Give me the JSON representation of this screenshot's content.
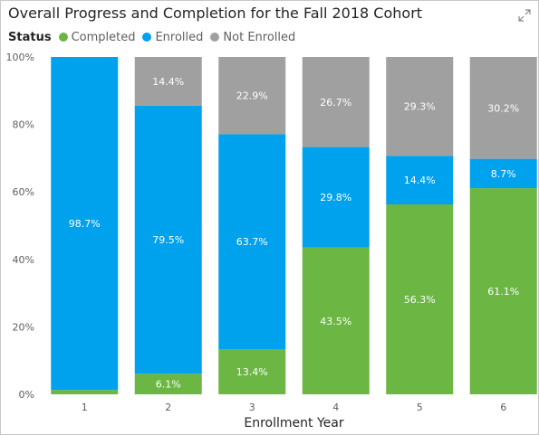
{
  "chart_data": {
    "type": "bar",
    "stacked": true,
    "title": "Overall Progress and Completion for the Fall 2018 Cohort",
    "legend_title": "Status",
    "legend_position": "top-left",
    "xlabel": "Enrollment Year",
    "ylabel": "",
    "categories": [
      "1",
      "2",
      "3",
      "4",
      "5",
      "6"
    ],
    "ylim": [
      0,
      100
    ],
    "y_ticks": [
      "0%",
      "20%",
      "40%",
      "60%",
      "80%",
      "100%"
    ],
    "y_tick_values": [
      0,
      20,
      40,
      60,
      80,
      100
    ],
    "grid": false,
    "series": [
      {
        "name": "Completed",
        "color": "#6cb643",
        "values": [
          1.3,
          6.1,
          13.4,
          43.5,
          56.3,
          61.1
        ],
        "labels": [
          "",
          "6.1%",
          "13.4%",
          "43.5%",
          "56.3%",
          "61.1%"
        ]
      },
      {
        "name": "Enrolled",
        "color": "#00a2ed",
        "values": [
          98.7,
          79.5,
          63.7,
          29.8,
          14.4,
          8.7
        ],
        "labels": [
          "98.7%",
          "79.5%",
          "63.7%",
          "29.8%",
          "14.4%",
          "8.7%"
        ]
      },
      {
        "name": "Not Enrolled",
        "color": "#a0a0a0",
        "values": [
          0,
          14.4,
          22.9,
          26.7,
          29.3,
          30.2
        ],
        "labels": [
          "",
          "14.4%",
          "22.9%",
          "26.7%",
          "29.3%",
          "30.2%"
        ]
      }
    ]
  },
  "header": {
    "focus_icon": "focus-mode-icon"
  }
}
